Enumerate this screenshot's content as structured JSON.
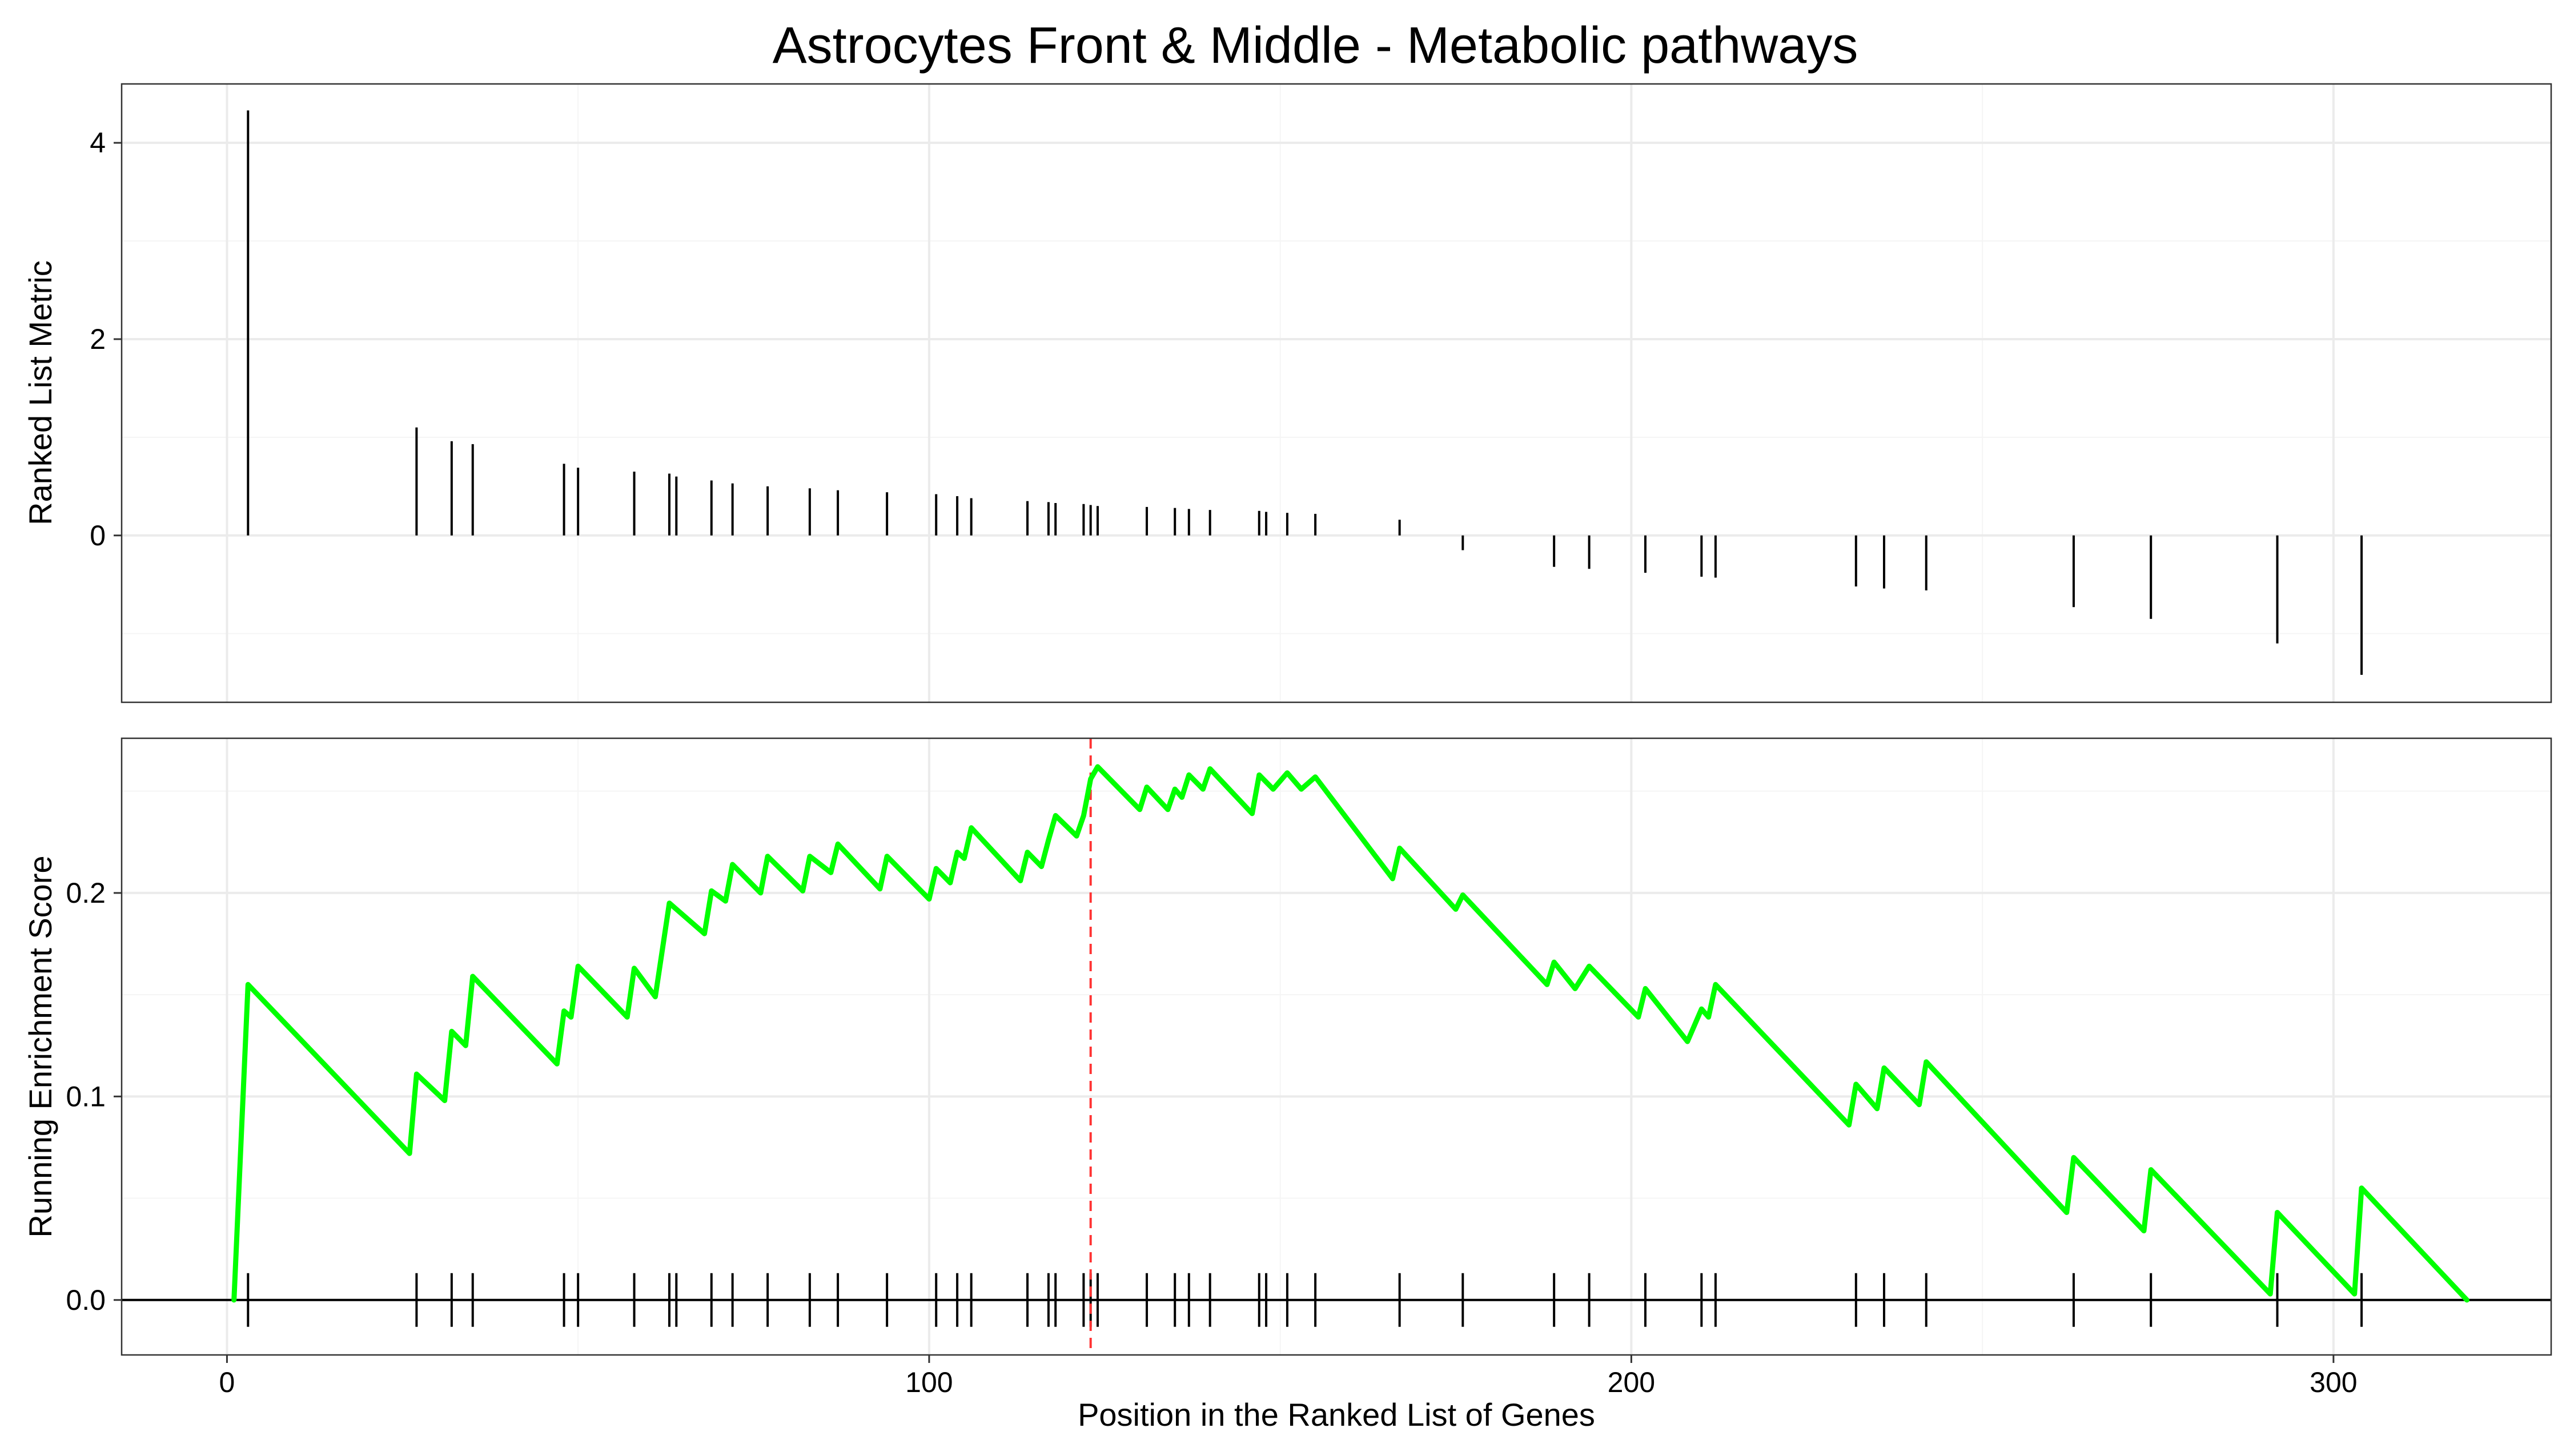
{
  "chart_data": {
    "type": "line",
    "title": "Astrocytes Front & Middle - Metabolic pathways",
    "xlabel": "Position in the Ranked List of Genes",
    "xlim": [
      -15,
      331
    ],
    "x_ticks": [
      0,
      100,
      200,
      300
    ],
    "x_tick_labels": [
      "0",
      "100",
      "200",
      "300"
    ],
    "top_panel": {
      "ylabel": "Ranked List Metric",
      "ylim": [
        -1.7,
        4.6
      ],
      "y_ticks": [
        0,
        2,
        4
      ],
      "y_tick_labels": [
        "0",
        "2",
        "4"
      ],
      "bars": [
        {
          "x": 3,
          "y": 4.33
        },
        {
          "x": 27,
          "y": 1.1
        },
        {
          "x": 32,
          "y": 0.96
        },
        {
          "x": 35,
          "y": 0.93
        },
        {
          "x": 48,
          "y": 0.73
        },
        {
          "x": 50,
          "y": 0.69
        },
        {
          "x": 58,
          "y": 0.65
        },
        {
          "x": 63,
          "y": 0.63
        },
        {
          "x": 64,
          "y": 0.6
        },
        {
          "x": 69,
          "y": 0.56
        },
        {
          "x": 72,
          "y": 0.53
        },
        {
          "x": 77,
          "y": 0.5
        },
        {
          "x": 83,
          "y": 0.48
        },
        {
          "x": 87,
          "y": 0.46
        },
        {
          "x": 94,
          "y": 0.44
        },
        {
          "x": 101,
          "y": 0.42
        },
        {
          "x": 104,
          "y": 0.4
        },
        {
          "x": 106,
          "y": 0.38
        },
        {
          "x": 114,
          "y": 0.35
        },
        {
          "x": 117,
          "y": 0.34
        },
        {
          "x": 118,
          "y": 0.33
        },
        {
          "x": 122,
          "y": 0.32
        },
        {
          "x": 123,
          "y": 0.31
        },
        {
          "x": 124,
          "y": 0.3
        },
        {
          "x": 131,
          "y": 0.29
        },
        {
          "x": 135,
          "y": 0.28
        },
        {
          "x": 137,
          "y": 0.27
        },
        {
          "x": 140,
          "y": 0.26
        },
        {
          "x": 147,
          "y": 0.25
        },
        {
          "x": 148,
          "y": 0.24
        },
        {
          "x": 151,
          "y": 0.23
        },
        {
          "x": 155,
          "y": 0.22
        },
        {
          "x": 167,
          "y": 0.16
        },
        {
          "x": 176,
          "y": -0.15
        },
        {
          "x": 189,
          "y": -0.32
        },
        {
          "x": 194,
          "y": -0.34
        },
        {
          "x": 202,
          "y": -0.38
        },
        {
          "x": 210,
          "y": -0.42
        },
        {
          "x": 212,
          "y": -0.43
        },
        {
          "x": 232,
          "y": -0.52
        },
        {
          "x": 236,
          "y": -0.54
        },
        {
          "x": 242,
          "y": -0.56
        },
        {
          "x": 263,
          "y": -0.73
        },
        {
          "x": 274,
          "y": -0.85
        },
        {
          "x": 292,
          "y": -1.1
        },
        {
          "x": 304,
          "y": -1.42
        }
      ]
    },
    "bottom_panel": {
      "ylabel": "Running Enrichment Score",
      "ylim": [
        -0.027,
        0.276
      ],
      "y_ticks": [
        0.0,
        0.1,
        0.2
      ],
      "y_tick_labels": [
        "0.0",
        "0.1",
        "0.2"
      ],
      "peak_position": 123,
      "series": [
        {
          "color": "#00ff00",
          "x": [
            1,
            3,
            26,
            27,
            31,
            32,
            34,
            35,
            47,
            48,
            49,
            50,
            57,
            58,
            61,
            63,
            64,
            68,
            69,
            71,
            72,
            76,
            77,
            82,
            83,
            86,
            87,
            93,
            94,
            100,
            101,
            103,
            104,
            105,
            106,
            113,
            114,
            116,
            117,
            118,
            121,
            122,
            123,
            124,
            130,
            131,
            134,
            135,
            136,
            137,
            139,
            140,
            146,
            147,
            149,
            151,
            153,
            155,
            166,
            167,
            175,
            176,
            188,
            189,
            192,
            194,
            201,
            202,
            208,
            210,
            211,
            212,
            231,
            232,
            235,
            236,
            241,
            242,
            262,
            263,
            273,
            274,
            291,
            292,
            303,
            304,
            319
          ],
          "y": [
            0.0,
            0.155,
            0.072,
            0.111,
            0.098,
            0.132,
            0.125,
            0.159,
            0.116,
            0.142,
            0.139,
            0.164,
            0.139,
            0.163,
            0.149,
            0.195,
            0.192,
            0.18,
            0.201,
            0.196,
            0.214,
            0.2,
            0.218,
            0.201,
            0.218,
            0.21,
            0.224,
            0.202,
            0.218,
            0.197,
            0.212,
            0.205,
            0.22,
            0.217,
            0.232,
            0.206,
            0.22,
            0.213,
            0.226,
            0.238,
            0.228,
            0.238,
            0.256,
            0.262,
            0.241,
            0.252,
            0.241,
            0.251,
            0.247,
            0.258,
            0.251,
            0.261,
            0.239,
            0.258,
            0.251,
            0.259,
            0.251,
            0.257,
            0.207,
            0.222,
            0.192,
            0.199,
            0.155,
            0.166,
            0.153,
            0.164,
            0.139,
            0.153,
            0.127,
            0.143,
            0.139,
            0.155,
            0.086,
            0.106,
            0.094,
            0.114,
            0.096,
            0.117,
            0.043,
            0.07,
            0.034,
            0.064,
            0.003,
            0.043,
            0.003,
            0.055,
            0.0
          ]
        }
      ],
      "gene_hits": [
        3,
        27,
        32,
        35,
        48,
        50,
        58,
        63,
        64,
        69,
        72,
        77,
        83,
        87,
        94,
        101,
        104,
        106,
        114,
        117,
        118,
        122,
        123,
        124,
        131,
        135,
        137,
        140,
        147,
        148,
        151,
        155,
        167,
        176,
        189,
        194,
        202,
        210,
        212,
        232,
        236,
        242,
        263,
        274,
        292,
        304
      ]
    }
  }
}
